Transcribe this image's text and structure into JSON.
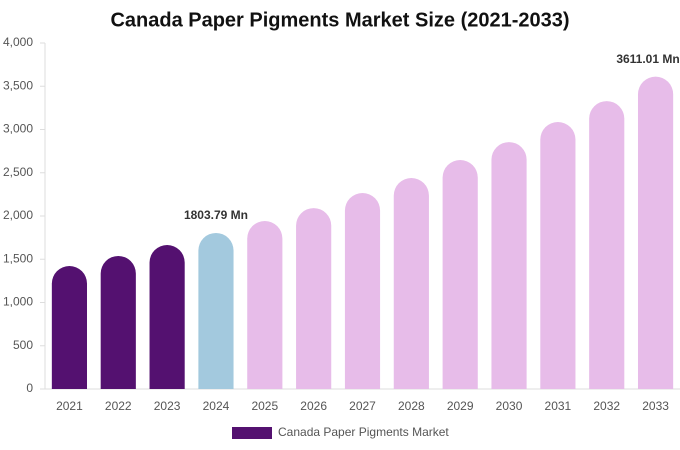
{
  "chart_data": {
    "type": "bar",
    "title": "Canada Paper Pigments Market Size (2021-2033)",
    "categories": [
      "2021",
      "2022",
      "2023",
      "2024",
      "2025",
      "2026",
      "2027",
      "2028",
      "2029",
      "2030",
      "2031",
      "2032",
      "2033"
    ],
    "series": [
      {
        "name": "Canada Paper Pigments Market",
        "color": "#541170",
        "values": [
          1422,
          1538,
          1665,
          1803.79,
          1942,
          2092,
          2266,
          2439,
          2647,
          2855,
          3087,
          3329,
          3611.01
        ],
        "value_labels": [
          null,
          null,
          null,
          "1803.79 Mn",
          null,
          null,
          null,
          null,
          null,
          null,
          null,
          null,
          "3611.01 Mn"
        ],
        "colors": [
          "#541170",
          "#541170",
          "#541170",
          "#a3c9de",
          "#e7bce9",
          "#e7bce9",
          "#e7bce9",
          "#e7bce9",
          "#e7bce9",
          "#e7bce9",
          "#e7bce9",
          "#e7bce9",
          "#e7bce9"
        ]
      }
    ],
    "ylim": [
      0,
      4000
    ],
    "yticks": [
      0,
      500,
      {
        "value": 1000,
        "label": "1,000"
      },
      {
        "value": 1500,
        "label": "1,500"
      },
      {
        "value": 2000,
        "label": "2,000"
      },
      {
        "value": 2500,
        "label": "2,500"
      },
      {
        "value": 3000,
        "label": "3,000"
      },
      {
        "value": 3500,
        "label": "3,500"
      },
      {
        "value": 4000,
        "label": "4,000"
      }
    ],
    "grid": false
  }
}
